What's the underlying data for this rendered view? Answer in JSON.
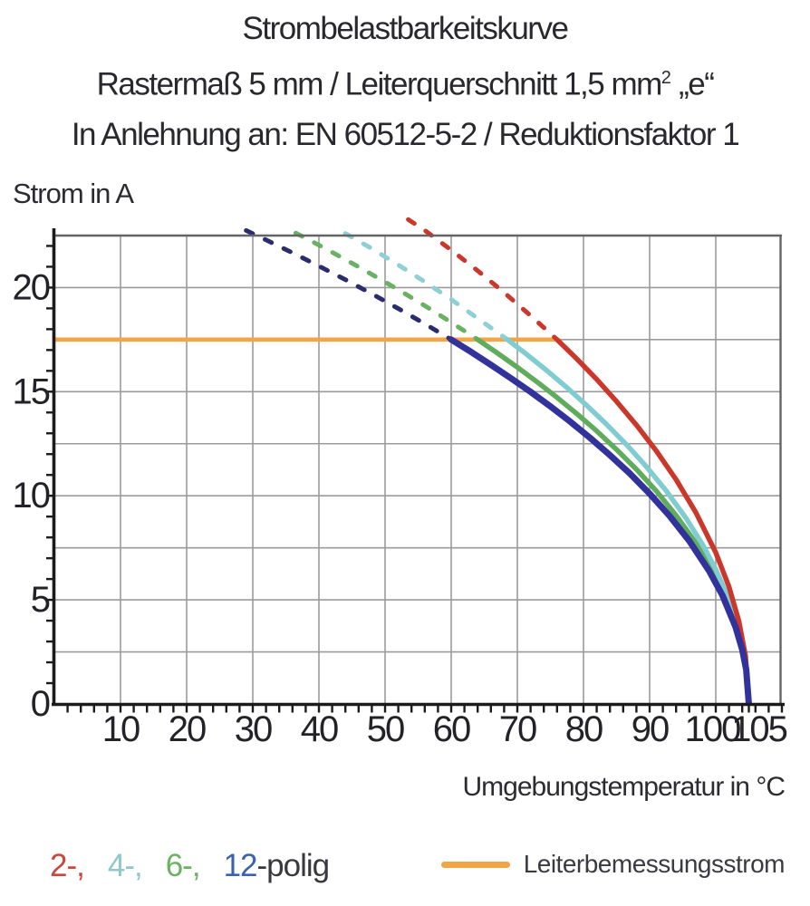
{
  "chart_data": {
    "type": "line",
    "title_line1": "Strombelastbarkeitskurve",
    "title_line2_prefix": "Rastermaß 5 mm / Leiterquerschnitt 1,5 mm",
    "title_line2_sup": "2",
    "title_line2_suffix": " „e“",
    "title_line3": "In Anlehnung an: EN 60512-5-2 / Reduktionsfaktor 1",
    "xlabel": "Umgebungstemperatur in °C",
    "ylabel": "Strom in A",
    "xlim": [
      0,
      110
    ],
    "ylim": [
      0,
      22.5
    ],
    "x_tick_values": [
      10,
      20,
      30,
      40,
      50,
      60,
      70,
      80,
      90,
      100,
      105
    ],
    "y_tick_values": [
      0,
      5,
      10,
      15,
      20
    ],
    "grid": {
      "x_step": 10,
      "y_step": 2.5,
      "color": "#9b9b9b"
    },
    "minor_ticks": {
      "x_step": 2,
      "y_step": 1
    },
    "rated_line": {
      "label": "Leiterbemessungsstrom",
      "current_a": 17.5,
      "temp_start_c": 0,
      "temp_end_c": 76,
      "color": "#f2a544"
    },
    "series": [
      {
        "name": "2-polig",
        "color": "#cb372a",
        "dash_color": "#cb372a",
        "rated_cross_c": 76,
        "max_temp_c": 105,
        "dashed_points": [
          [
            53.5,
            23.27
          ],
          [
            56,
            22.75
          ],
          [
            60,
            21.8
          ],
          [
            64,
            20.81
          ],
          [
            68,
            19.76
          ],
          [
            72,
            18.65
          ],
          [
            76,
            17.5
          ]
        ],
        "solid_points": [
          [
            76,
            17.5
          ],
          [
            79,
            16.57
          ],
          [
            82,
            15.59
          ],
          [
            85,
            14.53
          ],
          [
            88,
            13.4
          ],
          [
            91,
            12.16
          ],
          [
            94,
            10.78
          ],
          [
            97,
            9.19
          ],
          [
            100,
            7.27
          ],
          [
            102,
            5.63
          ],
          [
            103.5,
            3.98
          ],
          [
            104.5,
            2.3
          ],
          [
            105,
            0
          ]
        ]
      },
      {
        "name": "4-polig",
        "color": "#7fccd1",
        "dash_color": "#8ed0d5",
        "rated_cross_c": 68.5,
        "max_temp_c": 105,
        "dashed_points": [
          [
            44,
            22.6
          ],
          [
            48,
            21.87
          ],
          [
            52,
            21.09
          ],
          [
            56,
            20.28
          ],
          [
            60,
            19.43
          ],
          [
            64,
            18.52
          ],
          [
            68.5,
            17.5
          ]
        ],
        "solid_points": [
          [
            68.5,
            17.5
          ],
          [
            71.5,
            16.77
          ],
          [
            74.5,
            16.0
          ],
          [
            77.5,
            15.19
          ],
          [
            80.5,
            14.34
          ],
          [
            83.5,
            13.43
          ],
          [
            86.5,
            12.46
          ],
          [
            89.5,
            11.4
          ],
          [
            92.5,
            10.24
          ],
          [
            95.5,
            8.93
          ],
          [
            98,
            7.66
          ],
          [
            100,
            6.47
          ],
          [
            102,
            5.02
          ],
          [
            103.5,
            3.55
          ],
          [
            104.5,
            2.05
          ],
          [
            105,
            0
          ]
        ]
      },
      {
        "name": "6-polig",
        "color": "#5fad5c",
        "dash_color": "#69b163",
        "rated_cross_c": 64,
        "max_temp_c": 105,
        "dashed_points": [
          [
            36.5,
            22.62
          ],
          [
            40,
            22.04
          ],
          [
            44,
            21.35
          ],
          [
            48,
            20.63
          ],
          [
            52,
            19.9
          ],
          [
            56,
            19.13
          ],
          [
            60,
            18.33
          ],
          [
            64,
            17.5
          ]
        ],
        "solid_points": [
          [
            64,
            17.5
          ],
          [
            67,
            16.85
          ],
          [
            70,
            16.17
          ],
          [
            73,
            15.46
          ],
          [
            76,
            14.72
          ],
          [
            79,
            13.94
          ],
          [
            82,
            13.11
          ],
          [
            85,
            12.22
          ],
          [
            88,
            11.27
          ],
          [
            91,
            10.23
          ],
          [
            94,
            9.06
          ],
          [
            97,
            7.73
          ],
          [
            100,
            6.11
          ],
          [
            102,
            4.73
          ],
          [
            103.5,
            3.35
          ],
          [
            104.5,
            1.93
          ],
          [
            105,
            0
          ]
        ]
      },
      {
        "name": "12-polig",
        "color": "#32329c",
        "dash_color": "#2b2c6e",
        "rated_cross_c": 60,
        "max_temp_c": 105,
        "dashed_points": [
          [
            29,
            22.74
          ],
          [
            32,
            22.29
          ],
          [
            36,
            21.67
          ],
          [
            40,
            21.03
          ],
          [
            44,
            20.38
          ],
          [
            48,
            19.7
          ],
          [
            52,
            18.99
          ],
          [
            56,
            18.26
          ],
          [
            60,
            17.5
          ]
        ],
        "solid_points": [
          [
            60,
            17.5
          ],
          [
            63,
            16.91
          ],
          [
            66,
            16.29
          ],
          [
            69,
            15.65
          ],
          [
            72,
            14.99
          ],
          [
            75,
            14.29
          ],
          [
            78,
            13.56
          ],
          [
            81,
            12.78
          ],
          [
            84,
            11.95
          ],
          [
            87,
            11.07
          ],
          [
            90,
            10.1
          ],
          [
            93,
            9.04
          ],
          [
            96,
            7.83
          ],
          [
            99,
            6.39
          ],
          [
            101,
            5.22
          ],
          [
            103,
            3.69
          ],
          [
            104,
            2.61
          ],
          [
            104.6,
            1.65
          ],
          [
            105,
            0
          ]
        ]
      }
    ]
  },
  "legend": {
    "items": [
      {
        "label": "2-,",
        "color": "#c9473c"
      },
      {
        "label": "4-,",
        "color": "#8ec7cd"
      },
      {
        "label": "6-,",
        "color": "#6fb163"
      },
      {
        "label": "12",
        "color": "#3b63ad"
      }
    ],
    "suffix": "-polig",
    "suffix_color": "#38383e"
  },
  "axis_style": {
    "axis_color": "#1b1b1b",
    "border_color": "#646464",
    "tick_label_color": "#222228"
  }
}
